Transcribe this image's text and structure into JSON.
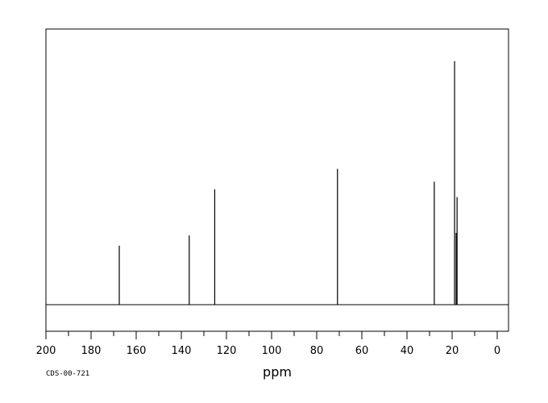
{
  "chart_data": {
    "type": "line",
    "title": "",
    "xlabel": "ppm",
    "ylabel": "",
    "xlim": [
      205,
      0
    ],
    "x_reversed": true,
    "ylim": [
      0,
      1
    ],
    "grid": false,
    "x_ticks": [
      200,
      180,
      160,
      140,
      120,
      100,
      80,
      60,
      40,
      20,
      0
    ],
    "x_ticks_minor_step": 10,
    "baseline": 0.0,
    "peaks": [
      {
        "ppm": 167.5,
        "intensity": 0.23
      },
      {
        "ppm": 136.5,
        "intensity": 0.27
      },
      {
        "ppm": 125.2,
        "intensity": 0.45
      },
      {
        "ppm": 70.8,
        "intensity": 0.53
      },
      {
        "ppm": 27.9,
        "intensity": 0.48
      },
      {
        "ppm": 18.9,
        "intensity": 0.95
      },
      {
        "ppm": 18.2,
        "intensity": 0.28
      },
      {
        "ppm": 17.8,
        "intensity": 0.42
      }
    ]
  },
  "footer": {
    "code": "CDS-00-721"
  },
  "colors": {
    "line": "#000000",
    "frame": "#000000",
    "background": "#ffffff"
  }
}
